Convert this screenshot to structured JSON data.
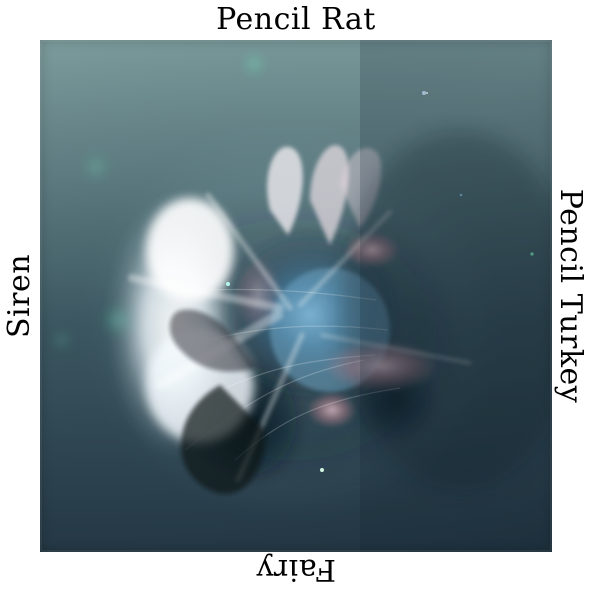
{
  "labels": {
    "top": "Pencil Rat",
    "bottom": "Fairy",
    "left": "Siren",
    "right": "Pencil Turkey"
  },
  "image": {
    "subject": "abstract-glowing-composite",
    "palette": {
      "top": "#79999a",
      "middle": "#3b5660",
      "bottom": "#243845",
      "glow": "#f4fbff",
      "accent_pink": "#d48d99",
      "accent_blue": "#3a7ea7",
      "accent_green": "#4de2b1"
    }
  }
}
